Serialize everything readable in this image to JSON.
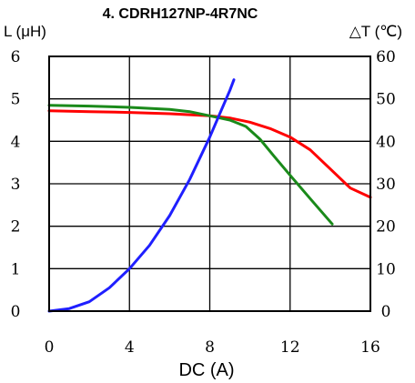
{
  "chart_data": {
    "type": "line",
    "title": "4. CDRH127NP-4R7NC",
    "xlabel": "DC (A)",
    "ylabel_left": "L (μH)",
    "ylabel_right": "△T (℃)",
    "xlim": [
      0,
      16
    ],
    "ylim_left": [
      0,
      6
    ],
    "ylim_right": [
      0,
      60
    ],
    "x_ticks": [
      0,
      4,
      8,
      12,
      16
    ],
    "y_ticks_left": [
      0,
      1,
      2,
      3,
      4,
      5,
      6
    ],
    "y_ticks_right": [
      0,
      10,
      20,
      30,
      40,
      50,
      60
    ],
    "grid": true,
    "series": [
      {
        "axis": "left",
        "color": "#ff0000",
        "points": [
          [
            0,
            4.72
          ],
          [
            2,
            4.7
          ],
          [
            4,
            4.68
          ],
          [
            6,
            4.65
          ],
          [
            8,
            4.6
          ],
          [
            9,
            4.55
          ],
          [
            10,
            4.45
          ],
          [
            11,
            4.3
          ],
          [
            12,
            4.1
          ],
          [
            13,
            3.8
          ],
          [
            14,
            3.35
          ],
          [
            15,
            2.9
          ],
          [
            16,
            2.68
          ]
        ]
      },
      {
        "axis": "left",
        "color": "#1a8a1a",
        "points": [
          [
            0,
            4.85
          ],
          [
            2,
            4.83
          ],
          [
            4,
            4.8
          ],
          [
            6,
            4.75
          ],
          [
            7,
            4.7
          ],
          [
            8,
            4.6
          ],
          [
            9,
            4.5
          ],
          [
            9.8,
            4.35
          ],
          [
            10.5,
            4.05
          ],
          [
            11.2,
            3.65
          ],
          [
            12,
            3.2
          ],
          [
            13,
            2.65
          ],
          [
            14.1,
            2.05
          ]
        ]
      },
      {
        "axis": "right",
        "color": "#1f1fff",
        "points": [
          [
            0,
            0
          ],
          [
            1,
            0.6
          ],
          [
            2,
            2.2
          ],
          [
            3,
            5.5
          ],
          [
            4,
            10
          ],
          [
            5,
            15.5
          ],
          [
            6,
            22.5
          ],
          [
            7,
            31
          ],
          [
            8,
            41
          ],
          [
            8.5,
            46.5
          ],
          [
            9,
            52
          ],
          [
            9.2,
            54.5
          ]
        ]
      }
    ]
  }
}
